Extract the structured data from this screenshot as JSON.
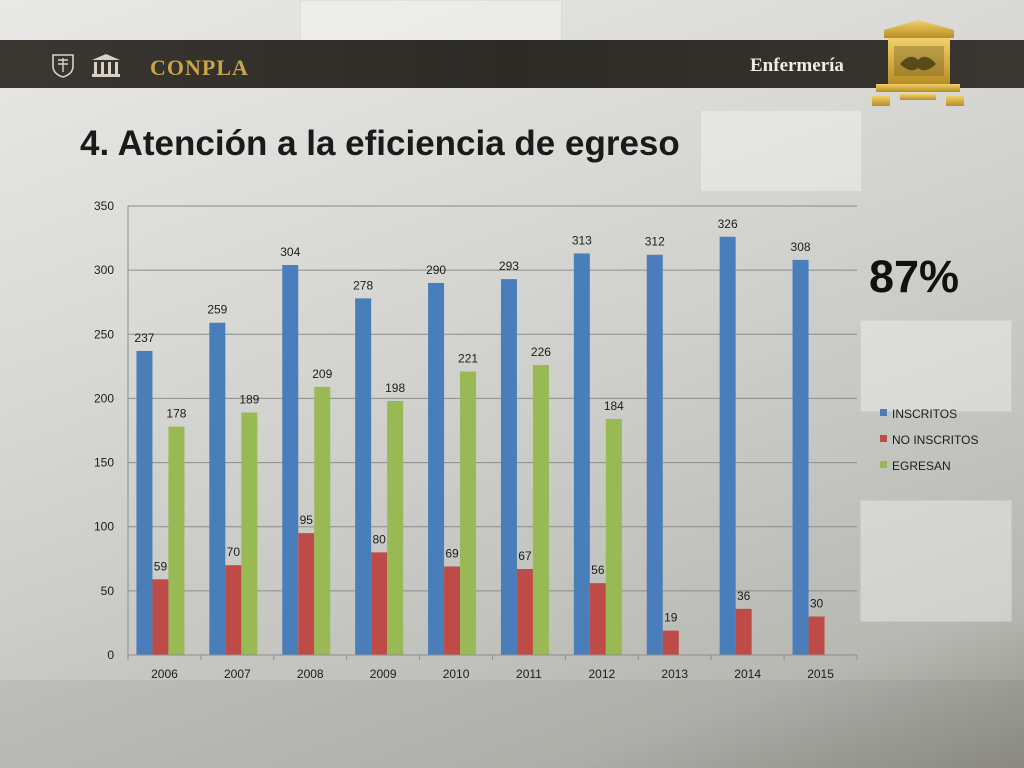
{
  "header": {
    "left_brand": "CONPLA",
    "right_brand": "Enfermería"
  },
  "page": {
    "title": "4. Atención a la eficiencia de egreso",
    "highlight": "87%"
  },
  "colors": {
    "inscritos": "#4a7ebb",
    "no_inscritos": "#be4b48",
    "egresan": "#98b954",
    "header_band": "#2d2a26",
    "brand_gold": "#c9a448"
  },
  "chart_data": {
    "type": "bar",
    "categories": [
      "2006",
      "2007",
      "2008",
      "2009",
      "2010",
      "2011",
      "2012",
      "2013",
      "2014",
      "2015"
    ],
    "series": [
      {
        "name": "INSCRITOS",
        "values": [
          237,
          259,
          304,
          278,
          290,
          293,
          313,
          312,
          326,
          308
        ]
      },
      {
        "name": "NO INSCRITOS",
        "values": [
          59,
          70,
          95,
          80,
          69,
          67,
          56,
          19,
          36,
          30
        ]
      },
      {
        "name": "EGRESAN",
        "values": [
          178,
          189,
          209,
          198,
          221,
          226,
          184,
          null,
          null,
          null
        ]
      }
    ],
    "y_ticks": [
      0,
      50,
      100,
      150,
      200,
      250,
      300,
      350
    ],
    "ylim": [
      0,
      350
    ],
    "grid": true,
    "legend_position": "right",
    "data_labels": true
  }
}
